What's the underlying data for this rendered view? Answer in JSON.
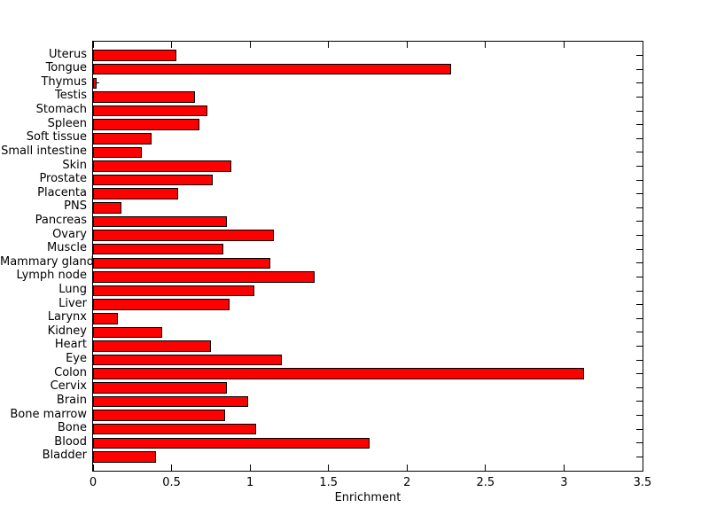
{
  "figure": {
    "background": "#ffffff"
  },
  "chart_data": {
    "type": "bar",
    "orientation": "horizontal",
    "title": "",
    "xlabel": "Enrichment",
    "ylabel": "",
    "xlim": [
      0,
      3.5
    ],
    "x_tick_labels": [
      "0",
      "0.5",
      "1",
      "1.5",
      "2",
      "2.5",
      "3",
      "3.5"
    ],
    "grid": false,
    "legend": null,
    "bar_color": "#ff0000",
    "bar_edge_color": "#000000",
    "axis_color": "#000000",
    "text_color": "#000000",
    "categories_top_to_bottom": [
      "Uterus",
      "Tongue",
      "Thymus",
      "Testis",
      "Stomach",
      "Spleen",
      "Soft tissue",
      "Small intestine",
      "Skin",
      "Prostate",
      "Placenta",
      "PNS",
      "Pancreas",
      "Ovary",
      "Muscle",
      "Mammary gland",
      "Lymph node",
      "Lung",
      "Liver",
      "Larynx",
      "Kidney",
      "Heart",
      "Eye",
      "Colon",
      "Cervix",
      "Brain",
      "Bone marrow",
      "Bone",
      "Blood",
      "Bladder"
    ],
    "values_top_to_bottom": [
      0.53,
      2.28,
      0.02,
      0.65,
      0.73,
      0.68,
      0.37,
      0.31,
      0.88,
      0.76,
      0.54,
      0.18,
      0.85,
      1.15,
      0.83,
      1.13,
      1.41,
      1.03,
      0.87,
      0.16,
      0.44,
      0.75,
      1.2,
      3.13,
      0.85,
      0.99,
      0.84,
      1.04,
      1.76,
      0.4
    ]
  }
}
